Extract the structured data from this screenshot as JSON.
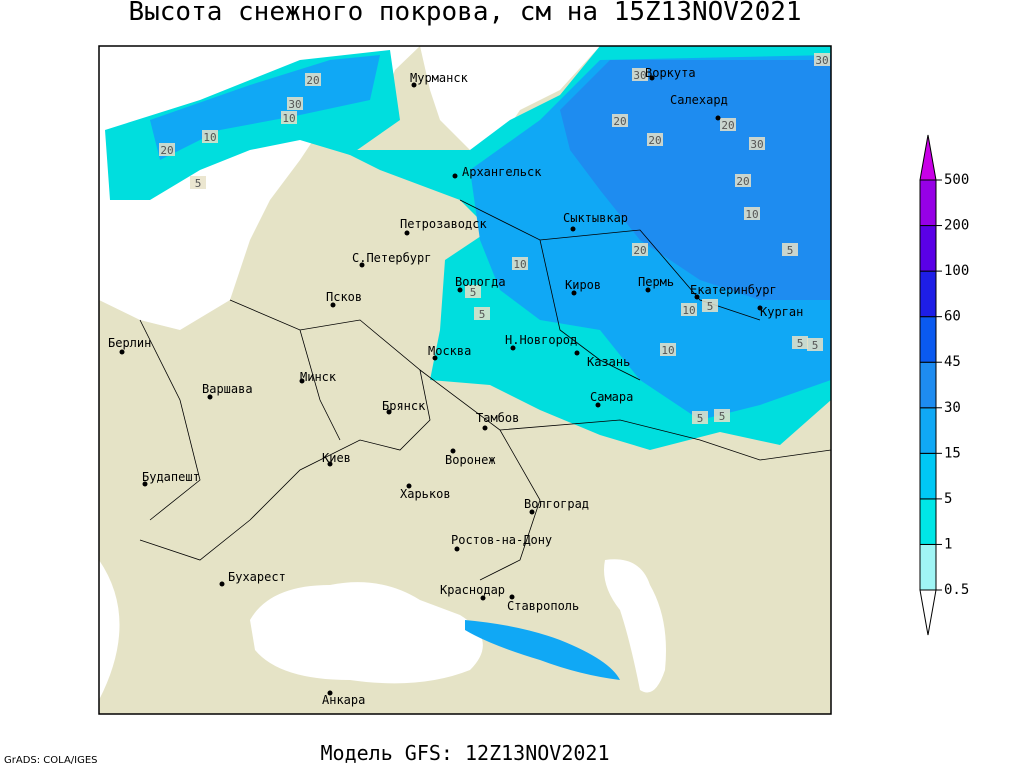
{
  "title": "Высота снежного покрова, см на 15Z13NOV2021",
  "footer": "Модель GFS: 12Z13NOV2021",
  "credit": "GrADS: COLA/IGES",
  "cities": [
    "Мурманск",
    "Воркута",
    "Салехард",
    "Архангельск",
    "Петрозаводск",
    "Сыктывкар",
    "С.Петербург",
    "Вологда",
    "Киров",
    "Пермь",
    "Екатеринбург",
    "Псков",
    "Курган",
    "Берлин",
    "Н.Новгород",
    "Москва",
    "Казань",
    "Минск",
    "Варшава",
    "Самара",
    "Брянск",
    "Тамбов",
    "Киев",
    "Воронеж",
    "Будапешт",
    "Харьков",
    "Волгоград",
    "Ростов-на-Дону",
    "Бухарест",
    "Краснодар",
    "Ставрополь",
    "Анкара"
  ],
  "contour_labels": [
    30,
    20,
    30,
    10,
    20,
    10,
    5,
    20,
    20,
    20,
    30,
    20,
    10,
    5,
    20,
    10,
    5,
    5,
    10,
    5,
    10,
    5,
    5,
    5,
    5,
    30
  ],
  "legend": {
    "levels": [
      0.5,
      1,
      5,
      15,
      30,
      45,
      60,
      100,
      200,
      500
    ],
    "colors": [
      "#ffffff",
      "#a0f5f5",
      "#00e6e6",
      "#00c8f5",
      "#10a8f5",
      "#1e8cf0",
      "#0a5af0",
      "#1e1ee6",
      "#5a00e6",
      "#9600e6",
      "#c800e6"
    ]
  }
}
